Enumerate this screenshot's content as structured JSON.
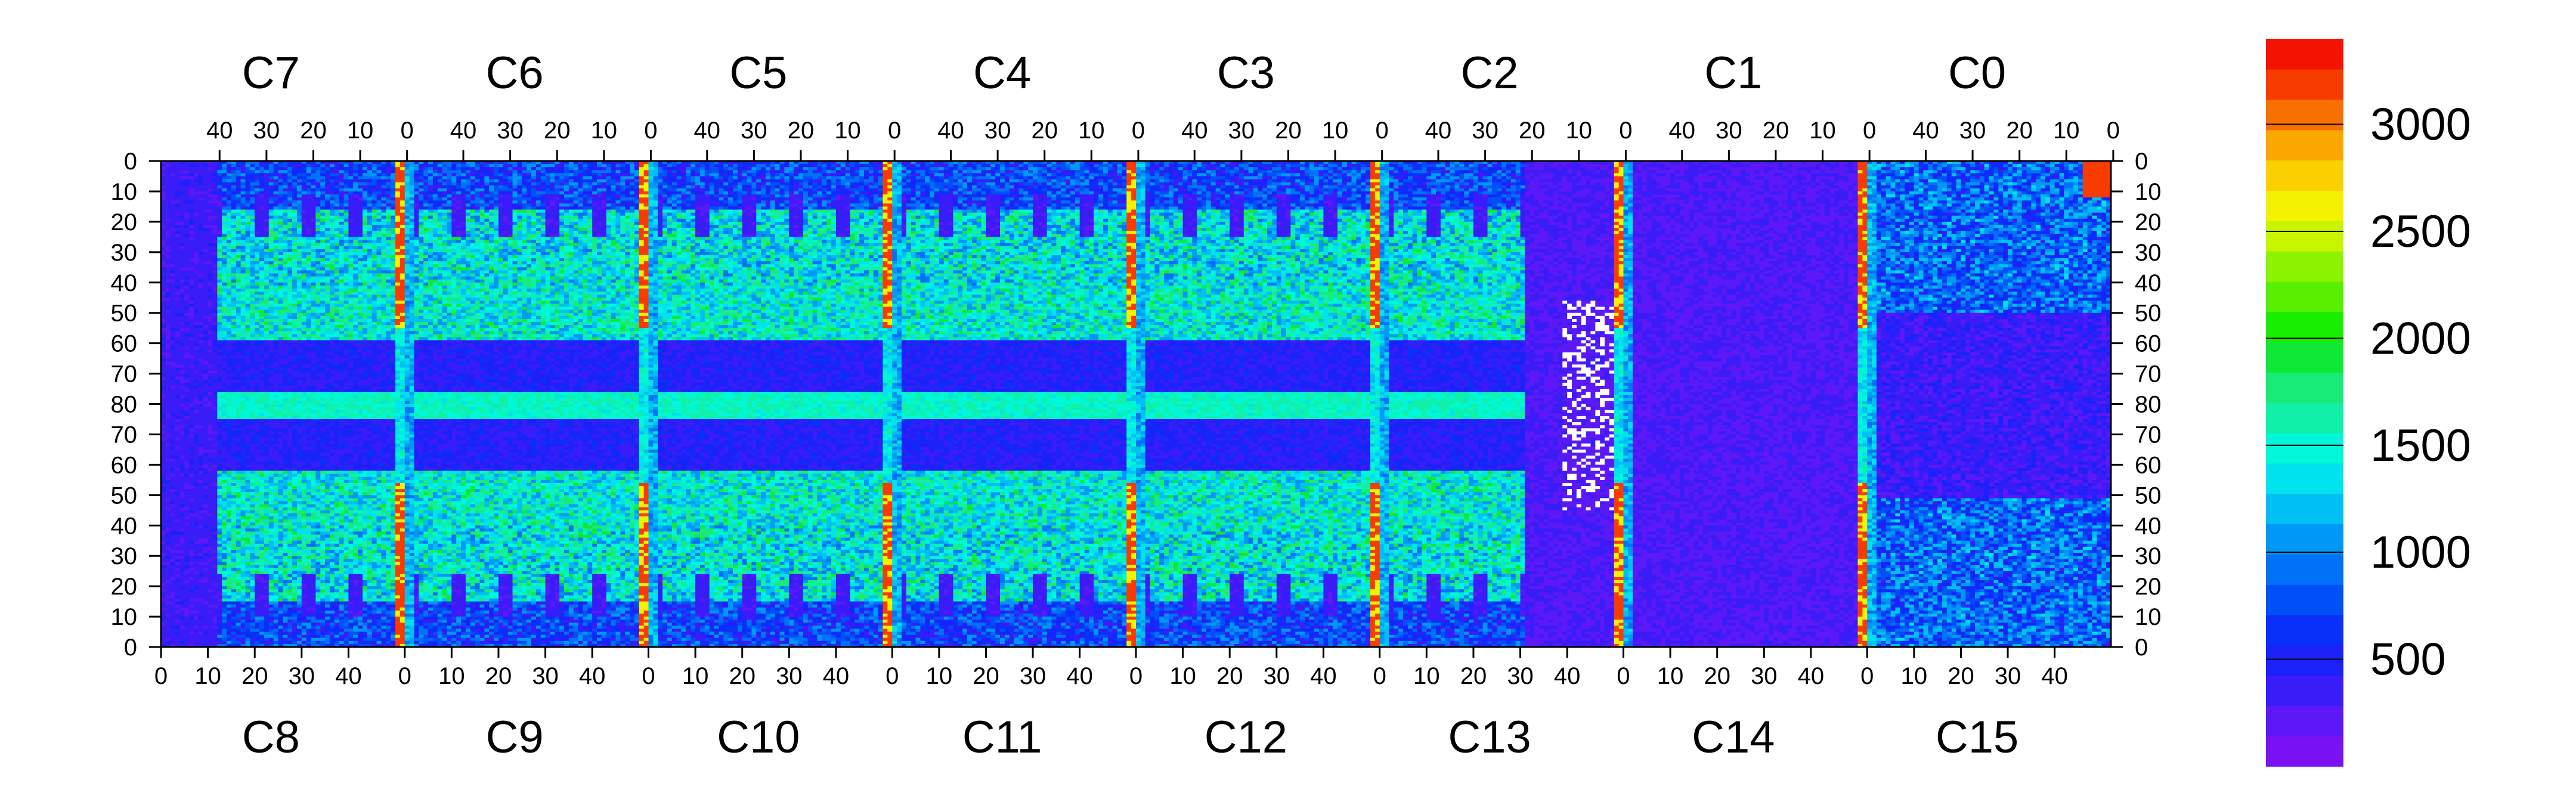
{
  "chart_data": {
    "type": "heatmap",
    "title": "",
    "xlabel": "",
    "ylabel": "",
    "top_chip_labels": [
      "C7",
      "C6",
      "C5",
      "C4",
      "C3",
      "C2",
      "C1",
      "C0"
    ],
    "bottom_chip_labels": [
      "C8",
      "C9",
      "C10",
      "C11",
      "C12",
      "C13",
      "C14",
      "C15"
    ],
    "top_x_ticks": [
      "40",
      "30",
      "20",
      "10",
      "0"
    ],
    "bottom_x_ticks": [
      "0",
      "10",
      "20",
      "30",
      "40"
    ],
    "y_ticks": [
      "0",
      "10",
      "20",
      "30",
      "40",
      "50",
      "60",
      "70",
      "80",
      "70",
      "60",
      "50",
      "40",
      "30",
      "20",
      "10",
      "0"
    ],
    "columns_per_chip": 52,
    "rows": 160,
    "z_range": [
      0,
      3400
    ],
    "colorbar_ticks": [
      "500",
      "1000",
      "1500",
      "2000",
      "2500",
      "3000"
    ],
    "colorbar_tick_values": [
      500,
      1000,
      1500,
      2000,
      2500,
      3000
    ],
    "colors": {
      "palette": [
        "#7a12f5",
        "#5c18f7",
        "#3a1cf8",
        "#1a22f9",
        "#0830f8",
        "#0050f8",
        "#0072f8",
        "#0098f6",
        "#00bff2",
        "#00e2ee",
        "#00f7d8",
        "#10f0a8",
        "#18eb78",
        "#10e838",
        "#18ef00",
        "#58f000",
        "#8cf400",
        "#c8f400",
        "#f4f200",
        "#fad000",
        "#faa800",
        "#f87000",
        "#f83c00",
        "#f41200"
      ],
      "hot_column": "#f43010",
      "warm_column": "#f4e010",
      "empty_pixel": "#ffffff"
    }
  }
}
